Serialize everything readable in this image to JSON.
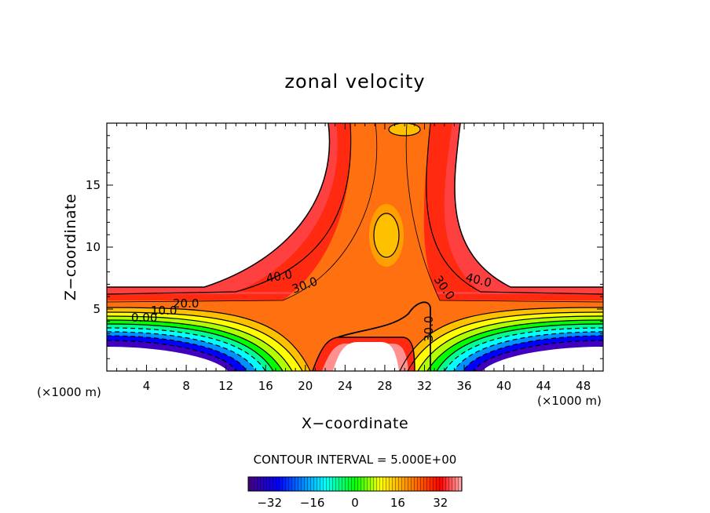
{
  "chart_data": {
    "type": "heatmap",
    "title": "zonal velocity",
    "xlabel": "X−coordinate",
    "ylabel": "Z−coordinate",
    "x_unit_left": "(×1000 m)",
    "x_unit_right": "(×1000 m)",
    "xlim": [
      0,
      50
    ],
    "ylim": [
      0,
      20
    ],
    "x_ticks": [
      4,
      8,
      12,
      16,
      20,
      24,
      28,
      32,
      36,
      40,
      44,
      48
    ],
    "y_ticks": [
      5,
      10,
      15
    ],
    "contour_interval_text": "CONTOUR INTERVAL = 5.000E+00",
    "contour_labels": [
      "40.0",
      "30.0",
      "20.0",
      "10.0",
      "0.00",
      "30.0",
      "40.0",
      "30.0"
    ],
    "colorbar_ticks": [
      -32,
      -16,
      0,
      16,
      32
    ],
    "colorbar_range": [
      -40,
      40
    ],
    "colormap": [
      "#4a0080",
      "#0000ff",
      "#00ffff",
      "#00ff00",
      "#ffff00",
      "#ff8000",
      "#ff0000",
      "#ffb0b0"
    ]
  }
}
